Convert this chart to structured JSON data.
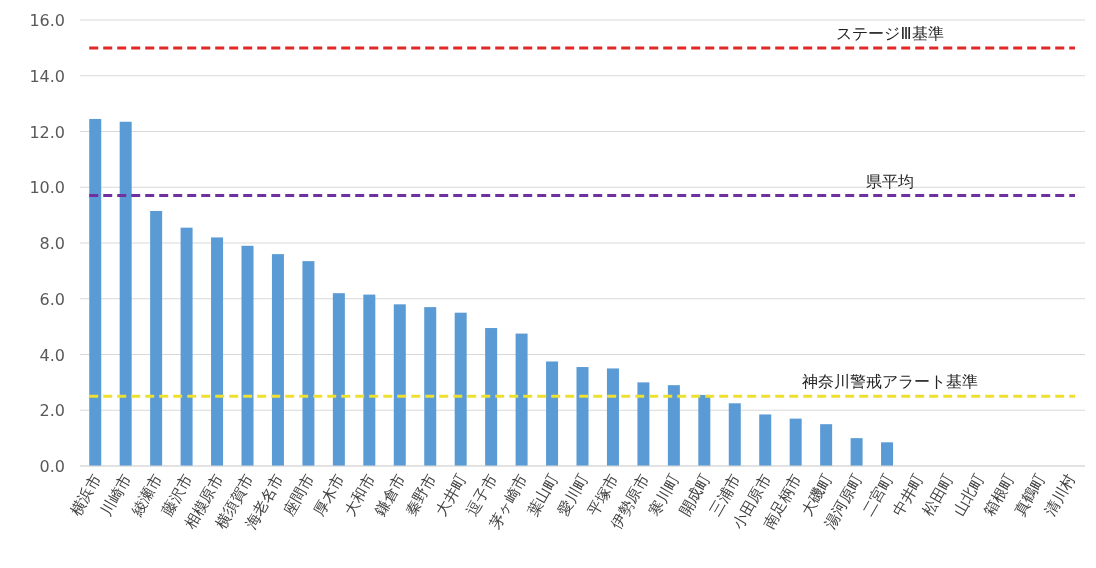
{
  "chart_data": {
    "type": "bar",
    "categories": [
      "横浜市",
      "川崎市",
      "綾瀬市",
      "藤沢市",
      "相模原市",
      "横須賀市",
      "海老名市",
      "座間市",
      "厚木市",
      "大和市",
      "鎌倉市",
      "秦野市",
      "大井町",
      "逗子市",
      "茅ヶ崎市",
      "葉山町",
      "愛川町",
      "平塚市",
      "伊勢原市",
      "寒川町",
      "開成町",
      "三浦市",
      "小田原市",
      "南足柄市",
      "大磯町",
      "湯河原町",
      "二宮町",
      "中井町",
      "松田町",
      "山北町",
      "箱根町",
      "真鶴町",
      "清川村"
    ],
    "values": [
      12.45,
      12.35,
      9.15,
      8.55,
      8.2,
      7.9,
      7.6,
      7.35,
      6.2,
      6.15,
      5.8,
      5.7,
      5.5,
      4.95,
      4.75,
      3.75,
      3.55,
      3.5,
      3.0,
      2.9,
      2.55,
      2.25,
      1.85,
      1.7,
      1.5,
      1.0,
      0.85,
      0,
      0,
      0,
      0,
      0,
      0
    ],
    "color": "#5b9bd5",
    "ylim": [
      0,
      16
    ],
    "yticks": [
      {
        "value": 0,
        "label": "0.0"
      },
      {
        "value": 2,
        "label": "2.0"
      },
      {
        "value": 4,
        "label": "4.0"
      },
      {
        "value": 6,
        "label": "6.0"
      },
      {
        "value": 8,
        "label": "8.0"
      },
      {
        "value": 10,
        "label": "10.0"
      },
      {
        "value": 12,
        "label": "12.0"
      },
      {
        "value": 14,
        "label": "14.0"
      },
      {
        "value": 16,
        "label": "16.0"
      }
    ],
    "grid": "y",
    "ref_lines": [
      {
        "axis": "y",
        "value": 15,
        "label": "ステージⅢ基準",
        "color": "#e02828",
        "line_style": "dashed"
      },
      {
        "axis": "y",
        "value": 9.7,
        "label": "県平均",
        "color": "#7030a0",
        "line_style": "dashed"
      },
      {
        "axis": "y",
        "value": 2.5,
        "label": "神奈川警戒アラート基準",
        "color": "#eee030",
        "line_style": "dashed"
      }
    ]
  }
}
